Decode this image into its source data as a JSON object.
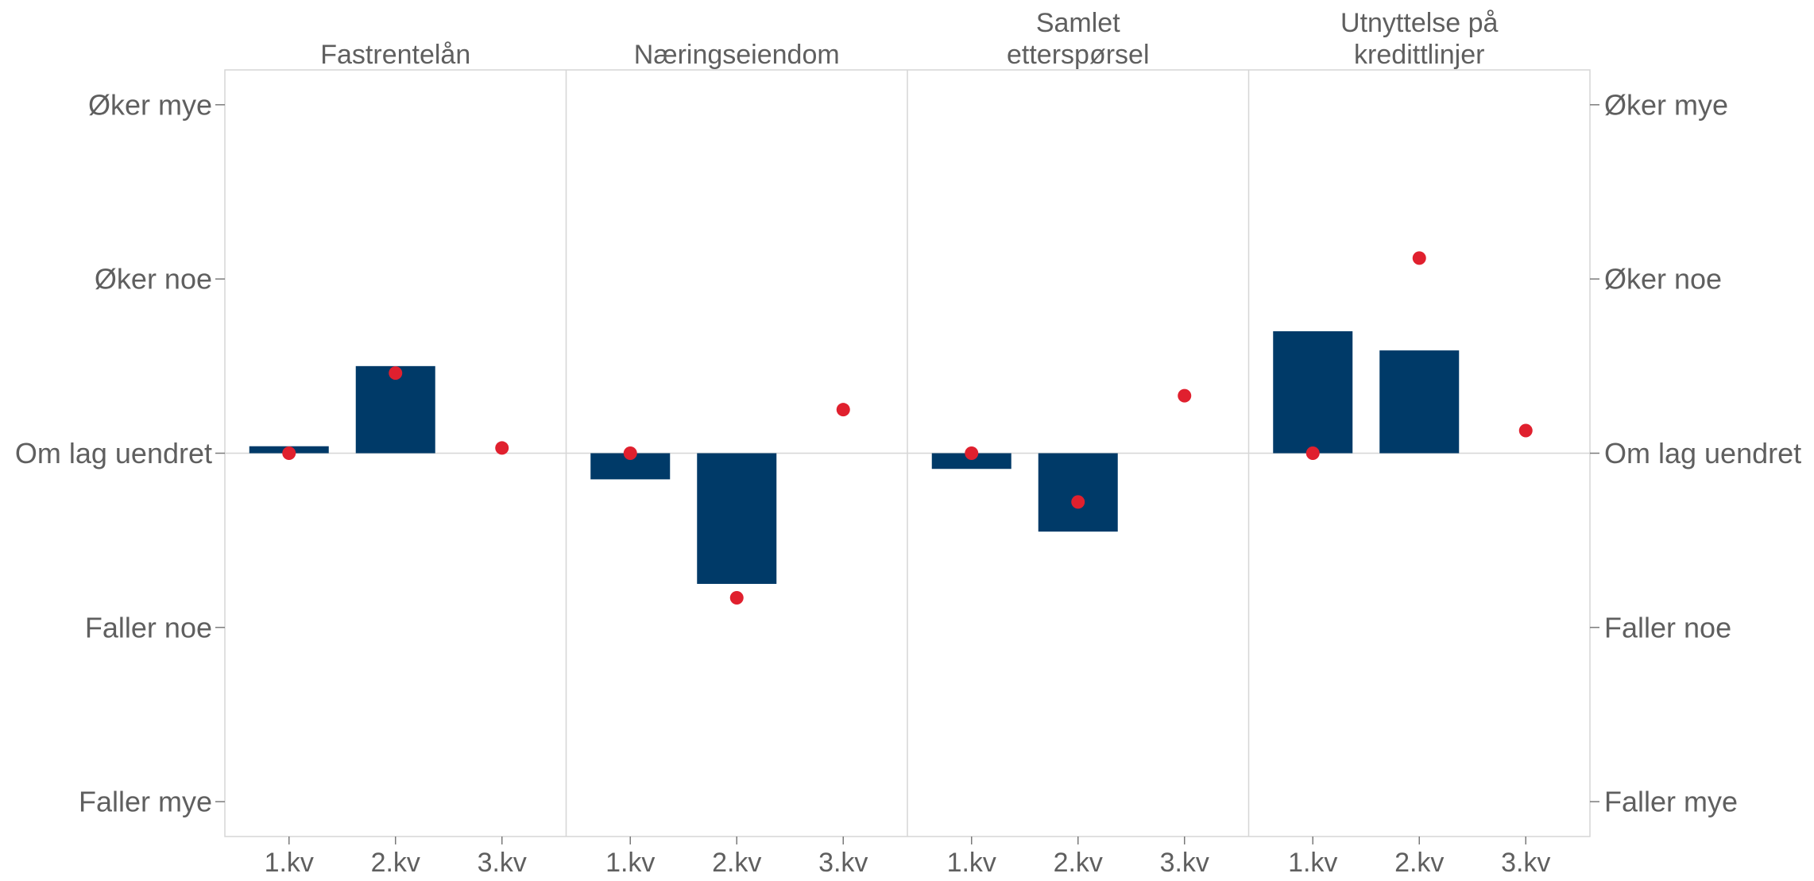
{
  "chart_data": {
    "type": "bar",
    "panels": [
      {
        "title_lines": [
          "Fastrentelån"
        ],
        "categories": [
          "1.kv",
          "2.kv",
          "3.kv"
        ],
        "bar_values": [
          0.04,
          0.5,
          null
        ],
        "dot_values": [
          0.0,
          0.46,
          0.03
        ]
      },
      {
        "title_lines": [
          "Næringseiendom"
        ],
        "categories": [
          "1.kv",
          "2.kv",
          "3.kv"
        ],
        "bar_values": [
          -0.15,
          -0.75,
          null
        ],
        "dot_values": [
          0.0,
          -0.83,
          0.25
        ]
      },
      {
        "title_lines": [
          "Samlet",
          "etterspørsel"
        ],
        "categories": [
          "1.kv",
          "2.kv",
          "3.kv"
        ],
        "bar_values": [
          -0.09,
          -0.45,
          null
        ],
        "dot_values": [
          0.0,
          -0.28,
          0.33
        ]
      },
      {
        "title_lines": [
          "Utnyttelse på",
          "kredittlinjer"
        ],
        "categories": [
          "1.kv",
          "2.kv",
          "3.kv"
        ],
        "bar_values": [
          0.7,
          0.59,
          null
        ],
        "dot_values": [
          0.0,
          1.12,
          0.13
        ]
      }
    ],
    "y_ticks": [
      {
        "value": 2,
        "label": "Øker mye"
      },
      {
        "value": 1,
        "label": "Øker noe"
      },
      {
        "value": 0,
        "label": "Om lag uendret"
      },
      {
        "value": -1,
        "label": "Faller noe"
      },
      {
        "value": -2,
        "label": "Faller mye"
      }
    ],
    "ylim": [
      -2.2,
      2.2
    ],
    "colors": {
      "bar": "#003a68",
      "dot": "#e0202e",
      "frame": "#d6d6d6",
      "text": "#5f5f5f"
    }
  }
}
